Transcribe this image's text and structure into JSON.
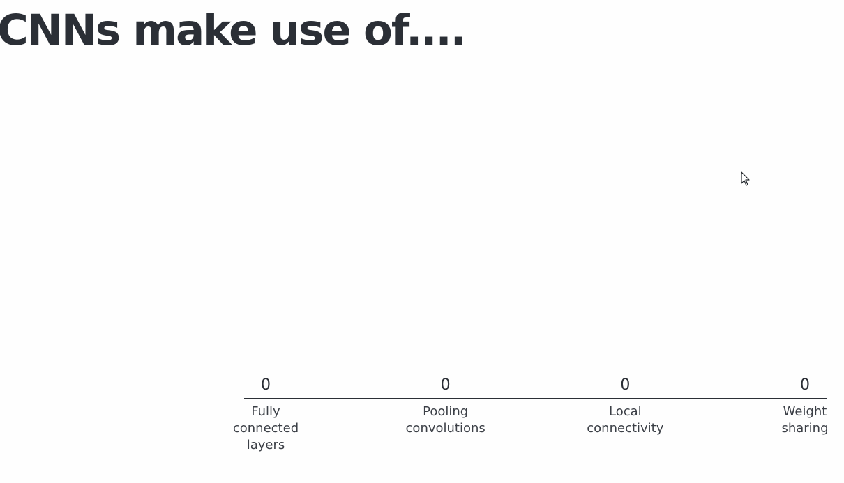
{
  "slide": {
    "title": "CNNs make use of...."
  },
  "colors": {
    "text": "#2b2f36",
    "axis": "#2b2f36",
    "background": "#fefefe"
  },
  "chart_data": {
    "type": "bar",
    "title": "CNNs make use of....",
    "categories": [
      [
        "Fully",
        "connected",
        "layers"
      ],
      [
        "Pooling",
        "convolutions"
      ],
      [
        "Local",
        "connectivity"
      ],
      [
        "Weight",
        "sharing"
      ]
    ],
    "values": [
      0,
      0,
      0,
      0
    ],
    "xlabel": "",
    "ylabel": "",
    "grid": false,
    "legend": "none"
  },
  "cursor": {
    "icon": "mouse-pointer-icon"
  }
}
